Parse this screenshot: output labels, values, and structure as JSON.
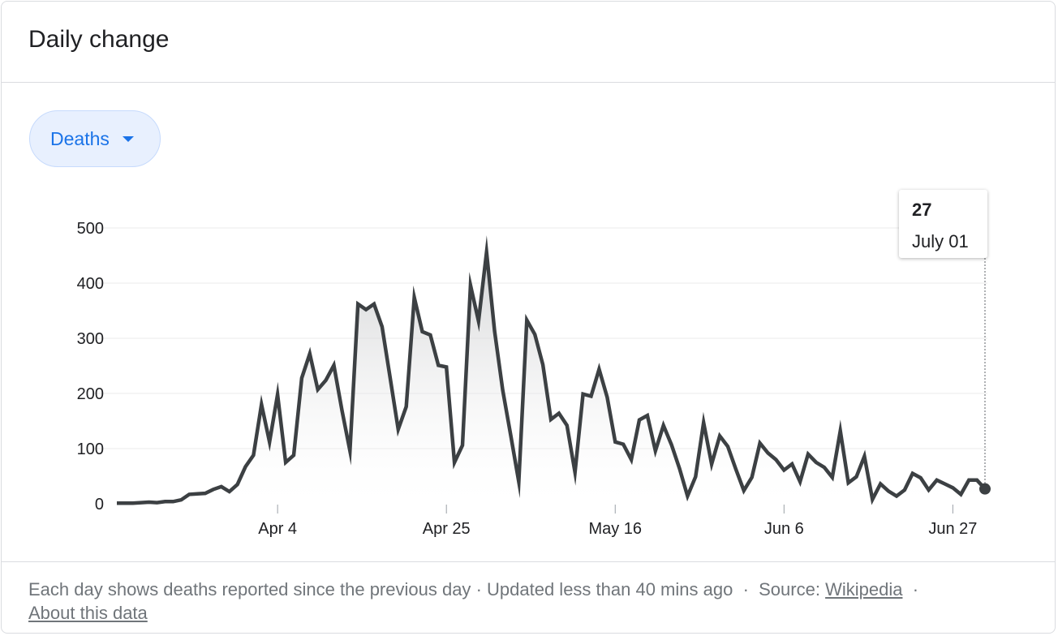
{
  "card": {
    "title": "Daily change"
  },
  "metric_selector": {
    "label": "Deaths",
    "icon": "caret-down-icon"
  },
  "tooltip": {
    "value": "27",
    "date": "July 01"
  },
  "footer": {
    "description": "Each day shows deaths reported since the previous day",
    "sep1": "·",
    "updated": "Updated less than 40 mins ago",
    "sep2": "·",
    "source_label": "Source:",
    "source_link": "Wikipedia",
    "sep3": "·",
    "about_link": "About this data"
  },
  "colors": {
    "line": "#3c4043",
    "grid": "#ebebeb",
    "accent": "#1a73e8",
    "chip_bg": "#e8f0fe"
  },
  "chart_data": {
    "type": "area",
    "title": "",
    "xlabel": "",
    "ylabel": "",
    "ylim": [
      0,
      500
    ],
    "yticks": [
      0,
      100,
      200,
      300,
      400,
      500
    ],
    "x_axis": {
      "start_date": "2020-03-15",
      "end_date": "2020-07-01",
      "ticks": [
        {
          "date": "2020-04-04",
          "label": "Apr 4"
        },
        {
          "date": "2020-04-25",
          "label": "Apr 25"
        },
        {
          "date": "2020-05-16",
          "label": "May 16"
        },
        {
          "date": "2020-06-06",
          "label": "Jun 6"
        },
        {
          "date": "2020-06-27",
          "label": "Jun 27"
        }
      ]
    },
    "grid": true,
    "legend": "none",
    "highlight": {
      "date": "2020-07-01",
      "value": 27
    },
    "series": [
      {
        "values": [
          1,
          1,
          1,
          2,
          3,
          2,
          4,
          4,
          7,
          17,
          18,
          19,
          26,
          31,
          22,
          35,
          67,
          88,
          180,
          112,
          198,
          75,
          88,
          228,
          272,
          207,
          224,
          251,
          170,
          96,
          362,
          352,
          362,
          321,
          228,
          135,
          176,
          374,
          312,
          306,
          251,
          248,
          75,
          106,
          396,
          331,
          456,
          313,
          206,
          124,
          40,
          333,
          307,
          252,
          153,
          164,
          142,
          57,
          199,
          195,
          244,
          193,
          112,
          108,
          80,
          152,
          160,
          96,
          142,
          107,
          64,
          14,
          49,
          147,
          72,
          123,
          104,
          63,
          24,
          48,
          110,
          92,
          80,
          61,
          72,
          40,
          90,
          75,
          66,
          48,
          132,
          38,
          49,
          86,
          8,
          36,
          23,
          14,
          25,
          55,
          47,
          25,
          43,
          36,
          29,
          17,
          43,
          43,
          27
        ]
      }
    ]
  }
}
